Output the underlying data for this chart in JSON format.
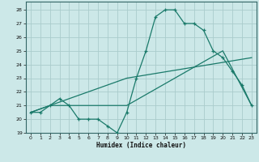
{
  "xlabel": "Humidex (Indice chaleur)",
  "xlim": [
    -0.5,
    23.5
  ],
  "ylim": [
    19,
    28.6
  ],
  "xticks": [
    0,
    1,
    2,
    3,
    4,
    5,
    6,
    7,
    8,
    9,
    10,
    11,
    12,
    13,
    14,
    15,
    16,
    17,
    18,
    19,
    20,
    21,
    22,
    23
  ],
  "yticks": [
    19,
    20,
    21,
    22,
    23,
    24,
    25,
    26,
    27,
    28
  ],
  "background_color": "#cce8e8",
  "grid_color": "#aacccc",
  "line_color": "#1a7a6a",
  "series1_x": [
    0,
    1,
    2,
    3,
    4,
    5,
    6,
    7,
    8,
    9,
    10,
    11,
    12,
    13,
    14,
    15,
    16,
    17,
    18,
    19,
    20,
    21,
    22,
    23
  ],
  "series1_y": [
    20.5,
    20.5,
    21.0,
    21.5,
    21.0,
    20.0,
    20.0,
    20.0,
    19.5,
    19.0,
    20.5,
    23.0,
    25.0,
    27.5,
    28.0,
    28.0,
    27.0,
    27.0,
    26.5,
    25.0,
    24.5,
    23.5,
    22.5,
    21.0
  ],
  "series2_x": [
    0,
    2,
    10,
    20,
    23
  ],
  "series2_y": [
    20.5,
    21.0,
    21.0,
    25.0,
    21.0
  ],
  "series3_x": [
    0,
    10,
    23
  ],
  "series3_y": [
    20.5,
    23.0,
    24.5
  ]
}
